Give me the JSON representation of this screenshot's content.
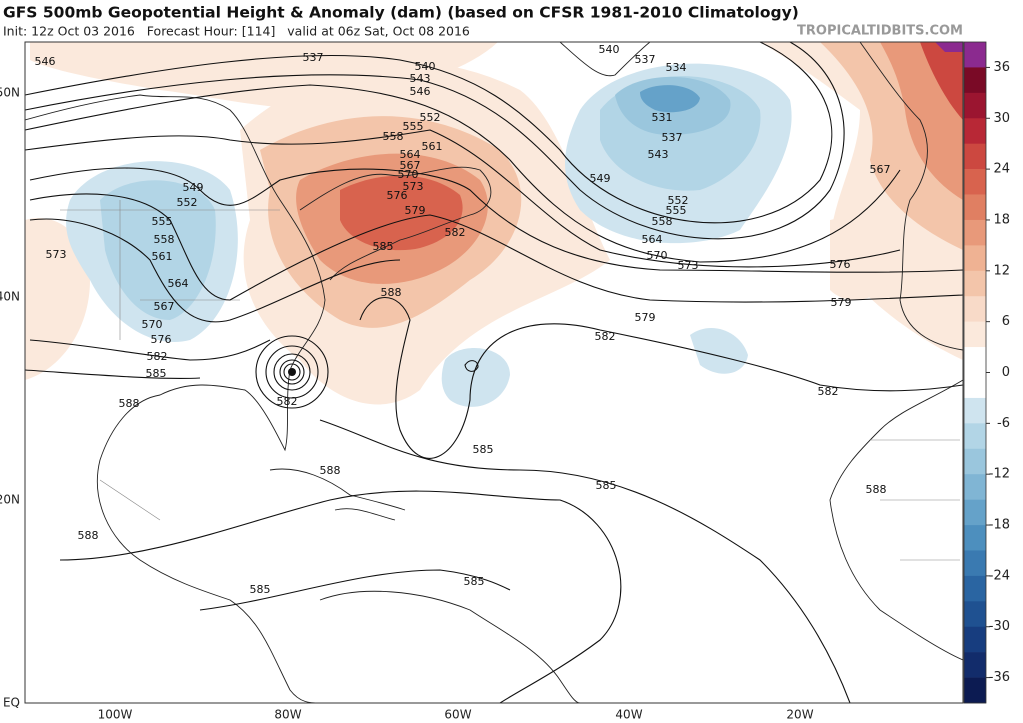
{
  "header": {
    "title": "GFS 500mb Geopotential Height & Anomaly (dam) (based on CFSR 1981-2010 Climatology)",
    "subtitle": "Init: 12z Oct 03 2016   Forecast Hour: [114]   valid at 06z Sat, Oct 08 2016",
    "watermark": "TROPICALTIDBITS.COM"
  },
  "map": {
    "lat_labels": [
      "50N",
      "40N",
      "20N",
      "EQ"
    ],
    "lon_labels": [
      "100W",
      "80W",
      "60W",
      "40W",
      "20W"
    ],
    "contour_labels": [
      546,
      537,
      540,
      543,
      546,
      552,
      555,
      558,
      561,
      564,
      567,
      570,
      573,
      576,
      579,
      582,
      585,
      588,
      540,
      537,
      534,
      531,
      537,
      543,
      549,
      552,
      555,
      558,
      564,
      570,
      573,
      576,
      579,
      579,
      582,
      582,
      567,
      549,
      552,
      555,
      558,
      561,
      564,
      567,
      570,
      573,
      576,
      582,
      585,
      582,
      588,
      588,
      585,
      585,
      588,
      588,
      585,
      585
    ]
  },
  "colorbar": {
    "lim": [
      -39,
      39
    ],
    "ticks": [
      36,
      30,
      24,
      18,
      12,
      6,
      0,
      -6,
      -12,
      -18,
      -24,
      -30,
      -36
    ],
    "colors": [
      "#8b2a8f",
      "#7a0a26",
      "#9b1530",
      "#b82836",
      "#cc4840",
      "#d8634e",
      "#e07f62",
      "#e8997a",
      "#efb293",
      "#f3c5aa",
      "#f8dac8",
      "#fbe9dc",
      "#ffffff",
      "#ffffff",
      "#cfe4ef",
      "#b2d5e6",
      "#9ac6dd",
      "#80b5d4",
      "#65a2c9",
      "#4d8fbe",
      "#3a7ab1",
      "#2a65a2",
      "#1f5191",
      "#173d7f",
      "#122c6b",
      "#0c1b52"
    ]
  }
}
